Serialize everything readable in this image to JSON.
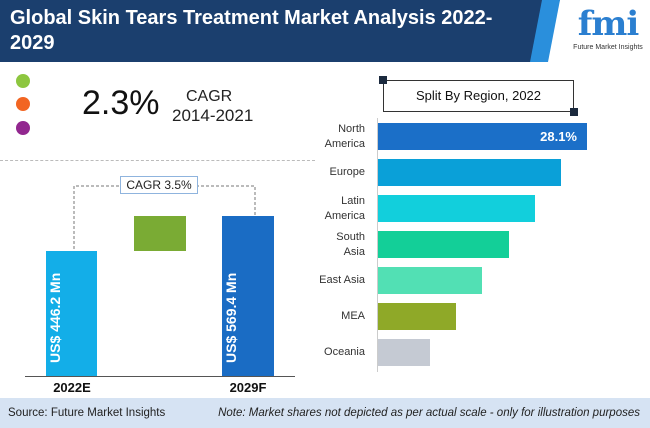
{
  "header": {
    "title": "Global Skin Tears Treatment Market Analysis 2022-2029",
    "logo_mark": "fmi",
    "logo_text": "Future Market Insights"
  },
  "legend_dots": [
    "#8dc63f",
    "#f26522",
    "#92278f"
  ],
  "cagr_hist": {
    "value": "2.3%",
    "label": "CAGR",
    "period": "2014-2021"
  },
  "chart_data": [
    {
      "type": "bar",
      "categories": [
        "2022E",
        "2029F"
      ],
      "values": [
        446.2,
        569.4
      ],
      "data_labels": [
        "US$ 446.2 Mn",
        "US$ 569.4 Mn"
      ],
      "annotation": "CAGR 3.5%",
      "colors": [
        "#13aee8",
        "#1a6cc4",
        "#7aab34"
      ]
    },
    {
      "type": "bar",
      "orientation": "horizontal",
      "title": "Split By Region, 2022",
      "categories": [
        "North America",
        "Europe",
        "Latin America",
        "South Asia",
        "East Asia",
        "MEA",
        "Oceania"
      ],
      "values": [
        28.1,
        24.6,
        21.1,
        17.6,
        14.0,
        10.5,
        7.0
      ],
      "data_labels": [
        "28.1%",
        "",
        "",
        "",
        "",
        "",
        ""
      ],
      "colors": [
        "#1b6fc8",
        "#0aa0d8",
        "#12cfdc",
        "#13cf98",
        "#52e0b4",
        "#8fa928",
        "#c5cad3"
      ]
    }
  ],
  "footer": {
    "source": "Source: Future Market Insights",
    "note": "Note: Market shares not depicted as per actual scale - only for illustration purposes"
  }
}
